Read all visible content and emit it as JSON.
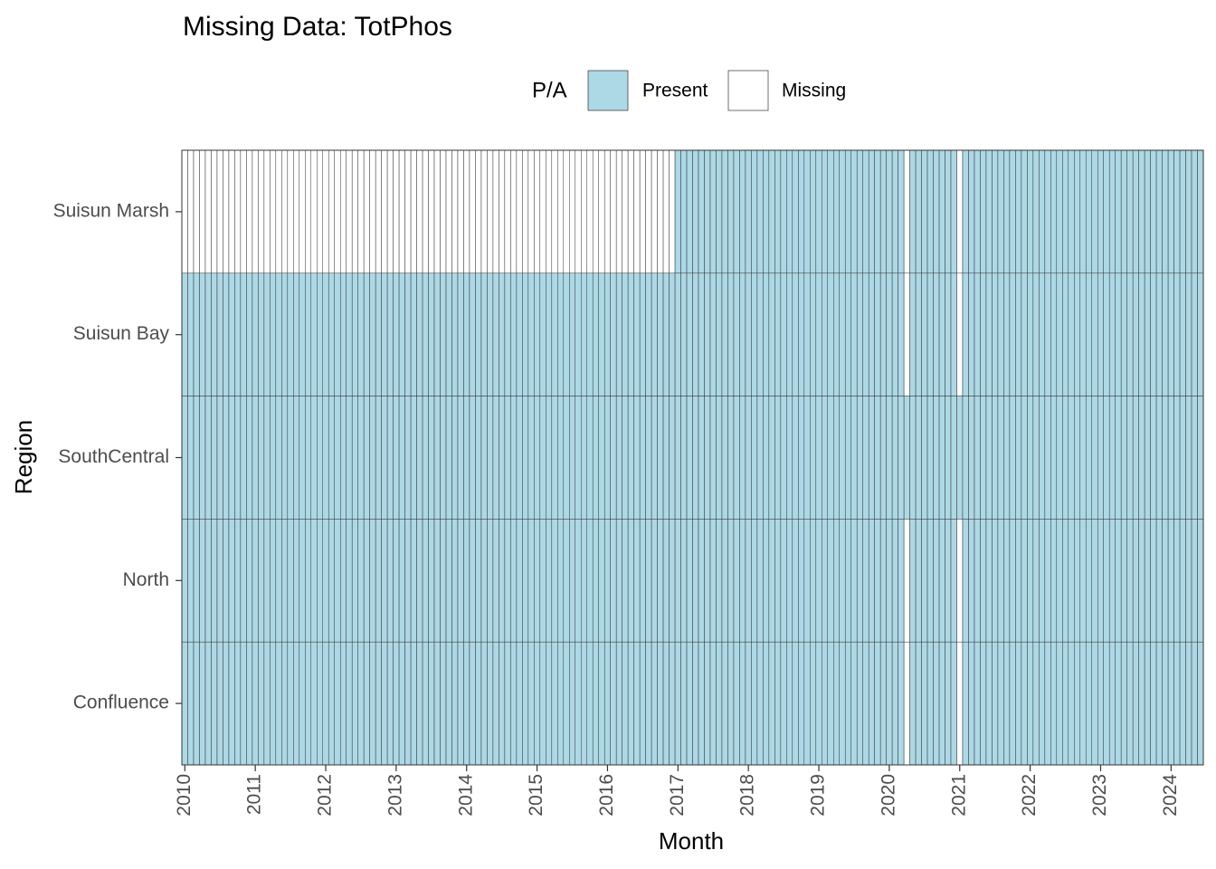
{
  "chart_data": {
    "type": "tile",
    "title": "Missing Data: TotPhos",
    "x_label": "Month",
    "y_label": "Region",
    "legend_title": "P/A",
    "legend": [
      {
        "name": "Present",
        "color": "#add8e6",
        "value": 1
      },
      {
        "name": "Missing",
        "color": "#ffffff",
        "value": 0
      }
    ],
    "xlim": [
      2009.958,
      2024.458
    ],
    "xticks": [
      2010,
      2011,
      2012,
      2013,
      2014,
      2015,
      2016,
      2017,
      2018,
      2019,
      2020,
      2021,
      2022,
      2023,
      2024
    ],
    "x": [
      2010,
      2010.083,
      2010.167,
      2010.25,
      2010.333,
      2010.417,
      2010.5,
      2010.583,
      2010.667,
      2010.75,
      2010.833,
      2010.917,
      2011,
      2011.083,
      2011.167,
      2011.25,
      2011.333,
      2011.417,
      2011.5,
      2011.583,
      2011.667,
      2011.75,
      2011.833,
      2011.917,
      2012,
      2012.083,
      2012.167,
      2012.25,
      2012.333,
      2012.417,
      2012.5,
      2012.583,
      2012.667,
      2012.75,
      2012.833,
      2012.917,
      2013,
      2013.083,
      2013.167,
      2013.25,
      2013.333,
      2013.417,
      2013.5,
      2013.583,
      2013.667,
      2013.75,
      2013.833,
      2013.917,
      2014,
      2014.083,
      2014.167,
      2014.25,
      2014.333,
      2014.417,
      2014.5,
      2014.583,
      2014.667,
      2014.75,
      2014.833,
      2014.917,
      2015,
      2015.083,
      2015.167,
      2015.25,
      2015.333,
      2015.417,
      2015.5,
      2015.583,
      2015.667,
      2015.75,
      2015.833,
      2015.917,
      2016,
      2016.083,
      2016.167,
      2016.25,
      2016.333,
      2016.417,
      2016.5,
      2016.583,
      2016.667,
      2016.75,
      2016.833,
      2016.917,
      2017,
      2017.083,
      2017.167,
      2017.25,
      2017.333,
      2017.417,
      2017.5,
      2017.583,
      2017.667,
      2017.75,
      2017.833,
      2017.917,
      2018,
      2018.083,
      2018.167,
      2018.25,
      2018.333,
      2018.417,
      2018.5,
      2018.583,
      2018.667,
      2018.75,
      2018.833,
      2018.917,
      2019,
      2019.083,
      2019.167,
      2019.25,
      2019.333,
      2019.417,
      2019.5,
      2019.583,
      2019.667,
      2019.75,
      2019.833,
      2019.917,
      2020,
      2020.083,
      2020.167,
      2020.25,
      2020.333,
      2020.417,
      2020.5,
      2020.583,
      2020.667,
      2020.75,
      2020.833,
      2020.917,
      2021,
      2021.083,
      2021.167,
      2021.25,
      2021.333,
      2021.417,
      2021.5,
      2021.583,
      2021.667,
      2021.75,
      2021.833,
      2021.917,
      2022,
      2022.083,
      2022.167,
      2022.25,
      2022.333,
      2022.417,
      2022.5,
      2022.583,
      2022.667,
      2022.75,
      2022.833,
      2022.917,
      2023,
      2023.083,
      2023.167,
      2023.25,
      2023.333,
      2023.417,
      2023.5,
      2023.583,
      2023.667,
      2023.75,
      2023.833,
      2023.917,
      2024,
      2024.083,
      2024.167,
      2024.25,
      2024.333,
      2024.417
    ],
    "series": [
      {
        "name": "Suisun Marsh",
        "values": [
          0,
          0,
          0,
          0,
          0,
          0,
          0,
          0,
          0,
          0,
          0,
          0,
          0,
          0,
          0,
          0,
          0,
          0,
          0,
          0,
          0,
          0,
          0,
          0,
          0,
          0,
          0,
          0,
          0,
          0,
          0,
          0,
          0,
          0,
          0,
          0,
          0,
          0,
          0,
          0,
          0,
          0,
          0,
          0,
          0,
          0,
          0,
          0,
          0,
          0,
          0,
          0,
          0,
          0,
          0,
          0,
          0,
          0,
          0,
          0,
          0,
          0,
          0,
          0,
          0,
          0,
          0,
          0,
          0,
          0,
          0,
          0,
          0,
          0,
          0,
          0,
          0,
          0,
          0,
          0,
          0,
          0,
          0,
          0,
          1,
          1,
          1,
          1,
          1,
          1,
          1,
          1,
          1,
          1,
          1,
          1,
          1,
          1,
          1,
          1,
          1,
          1,
          1,
          1,
          1,
          1,
          1,
          1,
          1,
          1,
          1,
          1,
          1,
          1,
          1,
          1,
          1,
          1,
          1,
          1,
          1,
          1,
          1,
          0,
          1,
          1,
          1,
          1,
          1,
          1,
          1,
          1,
          0,
          1,
          1,
          1,
          1,
          1,
          1,
          1,
          1,
          1,
          1,
          1,
          1,
          1,
          1,
          1,
          1,
          1,
          1,
          1,
          1,
          1,
          1,
          1,
          1,
          1,
          1,
          1,
          1,
          1,
          1,
          1,
          1,
          1,
          1,
          1,
          1,
          1,
          1,
          1,
          1,
          1
        ]
      },
      {
        "name": "Suisun Bay",
        "values": [
          1,
          1,
          1,
          1,
          1,
          1,
          1,
          1,
          1,
          1,
          1,
          1,
          1,
          1,
          1,
          1,
          1,
          1,
          1,
          1,
          1,
          1,
          1,
          1,
          1,
          1,
          1,
          1,
          1,
          1,
          1,
          1,
          1,
          1,
          1,
          1,
          1,
          1,
          1,
          1,
          1,
          1,
          1,
          1,
          1,
          1,
          1,
          1,
          1,
          1,
          1,
          1,
          1,
          1,
          1,
          1,
          1,
          1,
          1,
          1,
          1,
          1,
          1,
          1,
          1,
          1,
          1,
          1,
          1,
          1,
          1,
          1,
          1,
          1,
          1,
          1,
          1,
          1,
          1,
          1,
          1,
          1,
          1,
          1,
          1,
          1,
          1,
          1,
          1,
          1,
          1,
          1,
          1,
          1,
          1,
          1,
          1,
          1,
          1,
          1,
          1,
          1,
          1,
          1,
          1,
          1,
          1,
          1,
          1,
          1,
          1,
          1,
          1,
          1,
          1,
          1,
          1,
          1,
          1,
          1,
          1,
          1,
          1,
          0,
          1,
          1,
          1,
          1,
          1,
          1,
          1,
          1,
          0,
          1,
          1,
          1,
          1,
          1,
          1,
          1,
          1,
          1,
          1,
          1,
          1,
          1,
          1,
          1,
          1,
          1,
          1,
          1,
          1,
          1,
          1,
          1,
          1,
          1,
          1,
          1,
          1,
          1,
          1,
          1,
          1,
          1,
          1,
          1,
          1,
          1,
          1,
          1,
          1,
          1
        ]
      },
      {
        "name": "SouthCentral",
        "values": [
          1,
          1,
          1,
          1,
          1,
          1,
          1,
          1,
          1,
          1,
          1,
          1,
          1,
          1,
          1,
          1,
          1,
          1,
          1,
          1,
          1,
          1,
          1,
          1,
          1,
          1,
          1,
          1,
          1,
          1,
          1,
          1,
          1,
          1,
          1,
          1,
          1,
          1,
          1,
          1,
          1,
          1,
          1,
          1,
          1,
          1,
          1,
          1,
          1,
          1,
          1,
          1,
          1,
          1,
          1,
          1,
          1,
          1,
          1,
          1,
          1,
          1,
          1,
          1,
          1,
          1,
          1,
          1,
          1,
          1,
          1,
          1,
          1,
          1,
          1,
          1,
          1,
          1,
          1,
          1,
          1,
          1,
          1,
          1,
          1,
          1,
          1,
          1,
          1,
          1,
          1,
          1,
          1,
          1,
          1,
          1,
          1,
          1,
          1,
          1,
          1,
          1,
          1,
          1,
          1,
          1,
          1,
          1,
          1,
          1,
          1,
          1,
          1,
          1,
          1,
          1,
          1,
          1,
          1,
          1,
          1,
          1,
          1,
          1,
          1,
          1,
          1,
          1,
          1,
          1,
          1,
          1,
          1,
          1,
          1,
          1,
          1,
          1,
          1,
          1,
          1,
          1,
          1,
          1,
          1,
          1,
          1,
          1,
          1,
          1,
          1,
          1,
          1,
          1,
          1,
          1,
          1,
          1,
          1,
          1,
          1,
          1,
          1,
          1,
          1,
          1,
          1,
          1,
          1,
          1,
          1,
          1,
          1,
          1
        ]
      },
      {
        "name": "North",
        "values": [
          1,
          1,
          1,
          1,
          1,
          1,
          1,
          1,
          1,
          1,
          1,
          1,
          1,
          1,
          1,
          1,
          1,
          1,
          1,
          1,
          1,
          1,
          1,
          1,
          1,
          1,
          1,
          1,
          1,
          1,
          1,
          1,
          1,
          1,
          1,
          1,
          1,
          1,
          1,
          1,
          1,
          1,
          1,
          1,
          1,
          1,
          1,
          1,
          1,
          1,
          1,
          1,
          1,
          1,
          1,
          1,
          1,
          1,
          1,
          1,
          1,
          1,
          1,
          1,
          1,
          1,
          1,
          1,
          1,
          1,
          1,
          1,
          1,
          1,
          1,
          1,
          1,
          1,
          1,
          1,
          1,
          1,
          1,
          1,
          1,
          1,
          1,
          1,
          1,
          1,
          1,
          1,
          1,
          1,
          1,
          1,
          1,
          1,
          1,
          1,
          1,
          1,
          1,
          1,
          1,
          1,
          1,
          1,
          1,
          1,
          1,
          1,
          1,
          1,
          1,
          1,
          1,
          1,
          1,
          1,
          1,
          1,
          1,
          0,
          1,
          1,
          1,
          1,
          1,
          1,
          1,
          1,
          0,
          1,
          1,
          1,
          1,
          1,
          1,
          1,
          1,
          1,
          1,
          1,
          1,
          1,
          1,
          1,
          1,
          1,
          1,
          1,
          1,
          1,
          1,
          1,
          1,
          1,
          1,
          1,
          1,
          1,
          1,
          1,
          1,
          1,
          1,
          1,
          1,
          1,
          1,
          1,
          1,
          1
        ]
      },
      {
        "name": "Confluence",
        "values": [
          1,
          1,
          1,
          1,
          1,
          1,
          1,
          1,
          1,
          1,
          1,
          1,
          1,
          1,
          1,
          1,
          1,
          1,
          1,
          1,
          1,
          1,
          1,
          1,
          1,
          1,
          1,
          1,
          1,
          1,
          1,
          1,
          1,
          1,
          1,
          1,
          1,
          1,
          1,
          1,
          1,
          1,
          1,
          1,
          1,
          1,
          1,
          1,
          1,
          1,
          1,
          1,
          1,
          1,
          1,
          1,
          1,
          1,
          1,
          1,
          1,
          1,
          1,
          1,
          1,
          1,
          1,
          1,
          1,
          1,
          1,
          1,
          1,
          1,
          1,
          1,
          1,
          1,
          1,
          1,
          1,
          1,
          1,
          1,
          1,
          1,
          1,
          1,
          1,
          1,
          1,
          1,
          1,
          1,
          1,
          1,
          1,
          1,
          1,
          1,
          1,
          1,
          1,
          1,
          1,
          1,
          1,
          1,
          1,
          1,
          1,
          1,
          1,
          1,
          1,
          1,
          1,
          1,
          1,
          1,
          1,
          1,
          1,
          0,
          1,
          1,
          1,
          1,
          1,
          1,
          1,
          1,
          0,
          1,
          1,
          1,
          1,
          1,
          1,
          1,
          1,
          1,
          1,
          1,
          1,
          1,
          1,
          1,
          1,
          1,
          1,
          1,
          1,
          1,
          1,
          1,
          1,
          1,
          1,
          1,
          1,
          1,
          1,
          1,
          1,
          1,
          1,
          1,
          1,
          1,
          1,
          1,
          1,
          1
        ]
      }
    ]
  }
}
